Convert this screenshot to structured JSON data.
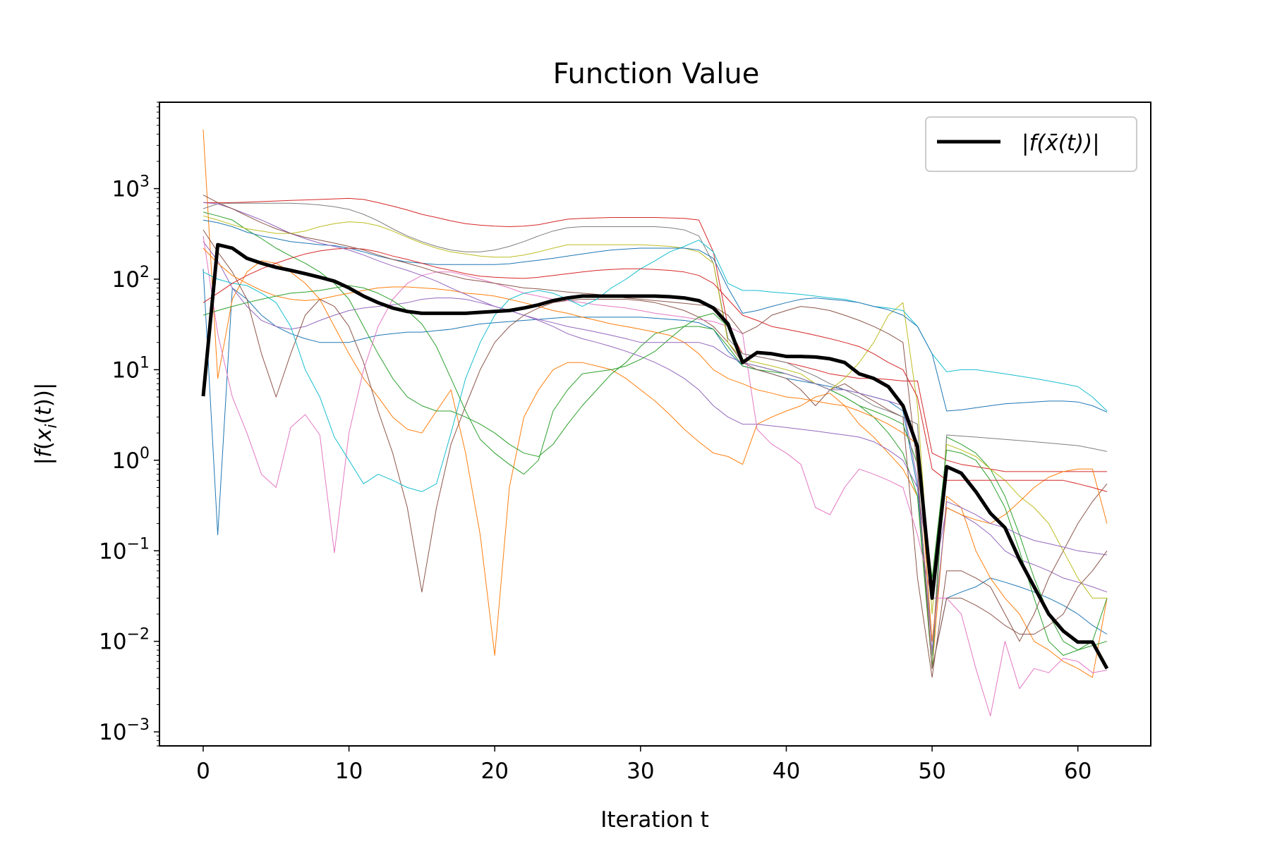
{
  "chart_data": {
    "type": "line",
    "title": "Function Value",
    "xlabel": "Iteration t",
    "ylabel": "|f(x_i(t))|",
    "yscale": "log",
    "xlim": [
      -3,
      65
    ],
    "ylim": [
      0.0007,
      9000
    ],
    "x_ticks": [
      0,
      10,
      20,
      30,
      40,
      50,
      60
    ],
    "y_ticks": [
      {
        "exp": "3",
        "value": 1000
      },
      {
        "exp": "2",
        "value": 100
      },
      {
        "exp": "1",
        "value": 10
      },
      {
        "exp": "0",
        "value": 1
      },
      {
        "exp": "−1",
        "value": 0.1
      },
      {
        "exp": "−2",
        "value": 0.01
      },
      {
        "exp": "−3",
        "value": 0.001
      }
    ],
    "legend": {
      "label": "|f(x̄(t))|",
      "position": "top-right"
    },
    "x": [
      0,
      1,
      2,
      3,
      4,
      5,
      6,
      7,
      8,
      9,
      10,
      11,
      12,
      13,
      14,
      15,
      16,
      17,
      18,
      19,
      20,
      21,
      22,
      23,
      24,
      25,
      26,
      27,
      28,
      29,
      30,
      31,
      32,
      33,
      34,
      35,
      36,
      37,
      38,
      39,
      40,
      41,
      42,
      43,
      44,
      45,
      46,
      47,
      48,
      49,
      50,
      51,
      52,
      53,
      54,
      55,
      56,
      57,
      58,
      59,
      60,
      61,
      62
    ],
    "mean_series": {
      "color": "#000000",
      "values": [
        5.1,
        240,
        220,
        170,
        150,
        135,
        125,
        115,
        105,
        95,
        80,
        65,
        55,
        48,
        44,
        42,
        42,
        42,
        42,
        43,
        44,
        45,
        48,
        52,
        58,
        62,
        65,
        65,
        65,
        65,
        65,
        65,
        64,
        62,
        58,
        48,
        32,
        12,
        15.5,
        15,
        14,
        14,
        13.8,
        13.2,
        12,
        9,
        8,
        6.5,
        4,
        1.4,
        0.03,
        0.85,
        0.72,
        0.45,
        0.26,
        0.18,
        0.08,
        0.04,
        0.02,
        0.013,
        0.0098,
        0.0098,
        0.005
      ]
    },
    "series": [
      {
        "color": "#1f77b4",
        "values": [
          130,
          0.15,
          80,
          60,
          40,
          30,
          25,
          22,
          20,
          20,
          20,
          22,
          24,
          25,
          26,
          26,
          27,
          28,
          30,
          32,
          33,
          34,
          35,
          36,
          37,
          38,
          38,
          38,
          38,
          38,
          38,
          37,
          36,
          35,
          33,
          28,
          16,
          11,
          10,
          9,
          8,
          7.5,
          7,
          6.5,
          6,
          5.5,
          5,
          4.5,
          3.5,
          0.5,
          0.005,
          0.03,
          0.035,
          0.04,
          0.05,
          0.045,
          0.04,
          0.035,
          0.03,
          0.025,
          0.02,
          0.015,
          0.012
        ]
      },
      {
        "color": "#ff7f0e",
        "values": [
          4500,
          8,
          60,
          120,
          160,
          150,
          120,
          90,
          60,
          30,
          15,
          8,
          5,
          3,
          2.2,
          2,
          3.5,
          6,
          1.2,
          0.15,
          0.007,
          0.5,
          3,
          6,
          10,
          12,
          12,
          11,
          10,
          8,
          6,
          4.5,
          3.2,
          2.2,
          1.6,
          1.2,
          1.1,
          0.9,
          2.5,
          3,
          3.5,
          4,
          5,
          5.5,
          4,
          2.5,
          1.8,
          1.2,
          0.8,
          0.4,
          0.005,
          0.4,
          0.3,
          0.1,
          0.05,
          0.03,
          0.02,
          0.01,
          0.008,
          0.006,
          0.005,
          0.004,
          0.03
        ]
      },
      {
        "color": "#2ca02c",
        "values": [
          550,
          500,
          450,
          350,
          280,
          220,
          180,
          150,
          120,
          90,
          60,
          30,
          15,
          8,
          5,
          4,
          3.5,
          3.5,
          3,
          2.5,
          2,
          1.5,
          1.2,
          1.1,
          1.5,
          2.5,
          4,
          6,
          9,
          12,
          18,
          25,
          28,
          30,
          30,
          28,
          18,
          11,
          10,
          9.5,
          9,
          8,
          7,
          6,
          5,
          4,
          3,
          2,
          1.2,
          0.4,
          0.005,
          1.8,
          1.5,
          1.2,
          0.8,
          0.4,
          0.15,
          0.05,
          0.02,
          0.01,
          0.008,
          0.01,
          0.03
        ]
      },
      {
        "color": "#d62728",
        "values": [
          700,
          700,
          700,
          710,
          720,
          730,
          740,
          750,
          760,
          770,
          780,
          760,
          700,
          640,
          580,
          520,
          480,
          440,
          410,
          395,
          385,
          380,
          385,
          400,
          430,
          460,
          470,
          475,
          480,
          480,
          480,
          480,
          475,
          470,
          450,
          200,
          30,
          15,
          14,
          13,
          12,
          11,
          10,
          9,
          8.5,
          8,
          8,
          7.8,
          7.5,
          7.5,
          1.2,
          1.0,
          0.9,
          0.85,
          0.8,
          0.75,
          0.75,
          0.75,
          0.75,
          0.75,
          0.75,
          0.75,
          0.75
        ]
      },
      {
        "color": "#9467bd",
        "values": [
          260,
          160,
          80,
          50,
          35,
          30,
          28,
          30,
          35,
          40,
          45,
          48,
          50,
          52,
          55,
          60,
          62,
          62,
          60,
          55,
          50,
          45,
          40,
          35,
          30,
          25,
          22,
          20,
          18,
          16,
          14,
          12,
          10,
          8,
          6,
          4,
          3,
          2.5,
          2.5,
          2.4,
          2.3,
          2.2,
          2.1,
          2.0,
          1.9,
          1.8,
          1.6,
          1.3,
          1.0,
          0.5,
          0.04,
          0.3,
          0.25,
          0.2,
          0.15,
          0.1,
          0.08,
          0.07,
          0.06,
          0.05,
          0.045,
          0.04,
          0.035
        ]
      },
      {
        "color": "#8c564b",
        "values": [
          350,
          200,
          120,
          60,
          15,
          5,
          15,
          40,
          60,
          50,
          30,
          12,
          3.5,
          1.2,
          0.3,
          0.035,
          0.3,
          1.5,
          4,
          10,
          20,
          30,
          40,
          48,
          55,
          58,
          60,
          60,
          60,
          60,
          58,
          55,
          50,
          45,
          38,
          30,
          20,
          12,
          10,
          9,
          8,
          6,
          4,
          6,
          7,
          5.5,
          4.5,
          3.6,
          3.0,
          0.05,
          0.004,
          0.06,
          0.06,
          0.05,
          0.04,
          0.02,
          0.01,
          0.02,
          0.05,
          0.1,
          0.2,
          0.35,
          0.55
        ]
      },
      {
        "color": "#e377c2",
        "values": [
          300,
          25,
          5,
          2,
          0.7,
          0.5,
          2.3,
          3.2,
          1.9,
          0.095,
          2,
          10,
          30,
          60,
          90,
          110,
          120,
          120,
          110,
          100,
          90,
          80,
          70,
          65,
          60,
          58,
          55,
          52,
          50,
          48,
          45,
          42,
          40,
          38,
          36,
          34,
          30,
          25,
          2.2,
          1.5,
          1.2,
          0.9,
          0.3,
          0.25,
          0.5,
          0.8,
          0.7,
          0.6,
          0.5,
          0.15,
          0.03,
          0.03,
          0.02,
          0.005,
          0.0015,
          0.01,
          0.003,
          0.005,
          0.0045,
          0.0065,
          0.006,
          0.0045,
          0.0048
        ]
      },
      {
        "color": "#7f7f7f",
        "values": [
          600,
          680,
          690,
          690,
          690,
          690,
          690,
          680,
          660,
          630,
          590,
          520,
          440,
          360,
          300,
          260,
          230,
          210,
          200,
          200,
          210,
          230,
          260,
          300,
          340,
          370,
          380,
          380,
          380,
          380,
          380,
          380,
          370,
          350,
          300,
          150,
          22,
          15,
          14,
          13,
          12,
          10,
          8.5,
          7,
          6,
          5,
          4,
          3.5,
          3,
          2.5,
          0.007,
          1.9,
          1.85,
          1.8,
          1.75,
          1.7,
          1.65,
          1.6,
          1.55,
          1.5,
          1.45,
          1.35,
          1.25
        ]
      },
      {
        "color": "#bcbd22",
        "values": [
          500,
          450,
          400,
          360,
          340,
          320,
          320,
          340,
          380,
          410,
          430,
          420,
          390,
          340,
          290,
          250,
          220,
          200,
          190,
          180,
          175,
          175,
          185,
          200,
          220,
          240,
          240,
          240,
          240,
          240,
          240,
          235,
          230,
          220,
          200,
          150,
          20,
          13,
          12,
          11,
          10,
          9,
          7,
          6,
          8,
          12,
          20,
          40,
          55,
          4,
          0.02,
          1.5,
          1.3,
          1.1,
          0.8,
          0.6,
          0.4,
          0.3,
          0.2,
          0.1,
          0.05,
          0.03,
          0.03
        ]
      },
      {
        "color": "#17becf",
        "values": [
          120,
          100,
          90,
          85,
          70,
          55,
          30,
          10,
          5,
          1.8,
          1.0,
          0.55,
          0.7,
          0.6,
          0.5,
          0.45,
          0.55,
          2,
          8,
          20,
          40,
          60,
          70,
          75,
          70,
          60,
          50,
          60,
          80,
          100,
          130,
          160,
          200,
          230,
          270,
          200,
          90,
          75,
          75,
          72,
          70,
          68,
          65,
          62,
          60,
          55,
          50,
          48,
          45,
          30,
          15,
          9.5,
          10,
          10,
          9.5,
          9,
          8.5,
          8,
          7.5,
          7,
          6.5,
          5,
          3.5
        ]
      },
      {
        "color": "#1f77b4",
        "values": [
          450,
          420,
          380,
          330,
          300,
          280,
          260,
          250,
          240,
          235,
          220,
          200,
          180,
          165,
          155,
          150,
          145,
          145,
          145,
          145,
          145,
          148,
          155,
          162,
          170,
          180,
          190,
          200,
          210,
          215,
          220,
          220,
          220,
          220,
          210,
          170,
          80,
          42,
          45,
          50,
          55,
          60,
          62,
          60,
          58,
          55,
          50,
          46,
          40,
          30,
          15,
          3.5,
          3.6,
          3.8,
          4.0,
          4.2,
          4.3,
          4.4,
          4.5,
          4.5,
          4.4,
          4.0,
          3.4
        ]
      },
      {
        "color": "#ff7f0e",
        "values": [
          220,
          150,
          110,
          90,
          75,
          65,
          60,
          58,
          60,
          65,
          70,
          75,
          80,
          82,
          82,
          80,
          78,
          75,
          70,
          68,
          65,
          60,
          55,
          50,
          45,
          42,
          38,
          35,
          32,
          30,
          28,
          26,
          24,
          20,
          15,
          10,
          8,
          7,
          6,
          5.5,
          5,
          4.8,
          4.5,
          4.2,
          4,
          3.5,
          3,
          2.5,
          2,
          1.5,
          0.01,
          0.3,
          0.25,
          0.22,
          0.2,
          0.25,
          0.35,
          0.5,
          0.65,
          0.75,
          0.8,
          0.8,
          0.2
        ]
      },
      {
        "color": "#2ca02c",
        "values": [
          40,
          45,
          50,
          55,
          60,
          65,
          70,
          72,
          75,
          80,
          85,
          80,
          70,
          58,
          45,
          32,
          18,
          8,
          3.5,
          1.7,
          1.2,
          0.9,
          0.7,
          1.0,
          3.5,
          6,
          9,
          9.5,
          10,
          11,
          13,
          16,
          22,
          30,
          38,
          42,
          30,
          12,
          11,
          10,
          9,
          8,
          7,
          6,
          5,
          4,
          3.5,
          3,
          2.5,
          0.9,
          0.05,
          1.3,
          1.2,
          1.0,
          0.6,
          0.3,
          0.1,
          0.03,
          0.01,
          0.007,
          0.008,
          0.009,
          0.01
        ]
      },
      {
        "color": "#d62728",
        "values": [
          55,
          70,
          90,
          110,
          130,
          150,
          170,
          190,
          205,
          215,
          220,
          215,
          200,
          180,
          165,
          150,
          135,
          125,
          115,
          108,
          105,
          103,
          102,
          105,
          110,
          115,
          120,
          125,
          128,
          130,
          130,
          128,
          125,
          120,
          110,
          90,
          60,
          40,
          35,
          30,
          28,
          26,
          24,
          22,
          20,
          18,
          15,
          12,
          10,
          5,
          0.8,
          0.6,
          0.6,
          0.6,
          0.6,
          0.6,
          0.6,
          0.6,
          0.6,
          0.6,
          0.55,
          0.5,
          0.45
        ]
      },
      {
        "color": "#9467bd",
        "values": [
          700,
          680,
          600,
          520,
          450,
          380,
          320,
          280,
          250,
          230,
          210,
          185,
          160,
          140,
          125,
          110,
          95,
          80,
          68,
          58,
          50,
          45,
          40,
          36,
          33,
          30,
          28,
          26,
          24,
          22,
          20,
          20,
          20,
          20,
          20,
          18,
          14,
          12,
          11,
          10,
          9,
          8,
          7,
          6,
          6,
          5.5,
          5,
          4.5,
          4,
          0.6,
          0.008,
          0.35,
          0.3,
          0.25,
          0.2,
          0.18,
          0.15,
          0.13,
          0.12,
          0.11,
          0.1,
          0.095,
          0.09
        ]
      },
      {
        "color": "#8c564b",
        "values": [
          850,
          700,
          600,
          500,
          420,
          360,
          320,
          290,
          270,
          250,
          230,
          210,
          185,
          165,
          150,
          135,
          120,
          110,
          100,
          95,
          90,
          85,
          80,
          78,
          75,
          72,
          70,
          68,
          65,
          62,
          60,
          58,
          56,
          54,
          52,
          50,
          40,
          25,
          30,
          40,
          45,
          50,
          48,
          45,
          40,
          35,
          30,
          25,
          20,
          0.8,
          0.005,
          0.03,
          0.03,
          0.025,
          0.02,
          0.015,
          0.012,
          0.012,
          0.015,
          0.02,
          0.04,
          0.06,
          0.1
        ]
      }
    ]
  }
}
